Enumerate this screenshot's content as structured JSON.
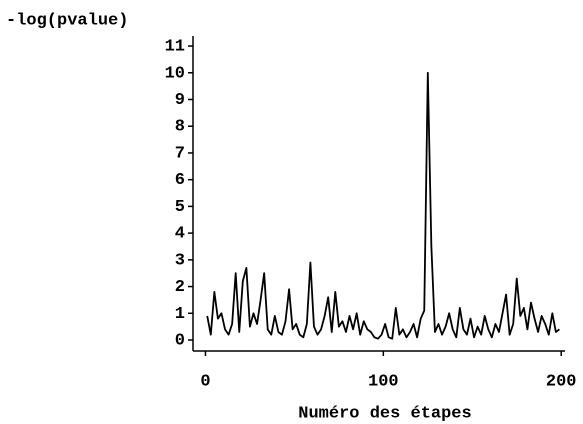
{
  "chart_data": {
    "type": "line",
    "title": "-log(pvalue)",
    "x_label": "Numéro des étapes",
    "x": [
      1,
      3,
      5,
      7,
      9,
      11,
      13,
      15,
      17,
      19,
      21,
      23,
      25,
      27,
      29,
      31,
      33,
      35,
      37,
      39,
      41,
      43,
      45,
      47,
      49,
      51,
      53,
      55,
      57,
      59,
      61,
      63,
      65,
      67,
      69,
      71,
      73,
      75,
      77,
      79,
      81,
      83,
      85,
      87,
      89,
      91,
      93,
      95,
      97,
      99,
      101,
      103,
      105,
      107,
      109,
      111,
      113,
      115,
      117,
      119,
      121,
      123,
      125,
      127,
      129,
      131,
      133,
      135,
      137,
      139,
      141,
      143,
      145,
      147,
      149,
      151,
      153,
      155,
      157,
      159,
      161,
      163,
      165,
      167,
      169,
      171,
      173,
      175,
      177,
      179,
      181,
      183,
      185,
      187,
      189,
      191,
      193,
      195,
      197,
      199
    ],
    "values": [
      0.9,
      0.2,
      1.8,
      0.8,
      1.0,
      0.4,
      0.2,
      0.6,
      2.5,
      0.3,
      2.2,
      2.7,
      0.5,
      1.0,
      0.6,
      1.5,
      2.5,
      0.4,
      0.2,
      0.9,
      0.3,
      0.2,
      0.7,
      1.9,
      0.4,
      0.6,
      0.2,
      0.1,
      0.6,
      2.9,
      0.5,
      0.2,
      0.4,
      0.9,
      1.6,
      0.3,
      1.8,
      0.5,
      0.7,
      0.3,
      0.9,
      0.4,
      1.0,
      0.2,
      0.7,
      0.4,
      0.3,
      0.1,
      0.05,
      0.2,
      0.6,
      0.1,
      0.05,
      1.2,
      0.2,
      0.4,
      0.1,
      0.3,
      0.6,
      0.1,
      0.8,
      1.1,
      10,
      3.5,
      0.3,
      0.6,
      0.2,
      0.5,
      1.0,
      0.4,
      0.1,
      1.2,
      0.4,
      0.2,
      0.8,
      0.1,
      0.5,
      0.2,
      0.9,
      0.4,
      0.1,
      0.6,
      0.3,
      1.0,
      1.7,
      0.2,
      0.6,
      2.3,
      0.9,
      1.2,
      0.4,
      1.4,
      0.8,
      0.3,
      0.9,
      0.6,
      0.2,
      1.0,
      0.3,
      0.4
    ],
    "color": "#000000",
    "xlim": [
      -7,
      201
    ],
    "ylim": [
      -0.4,
      11.2
    ],
    "xticks": [
      0,
      100,
      200
    ],
    "yticks": [
      0,
      1,
      2,
      3,
      4,
      5,
      6,
      7,
      8,
      9,
      10,
      11
    ]
  }
}
